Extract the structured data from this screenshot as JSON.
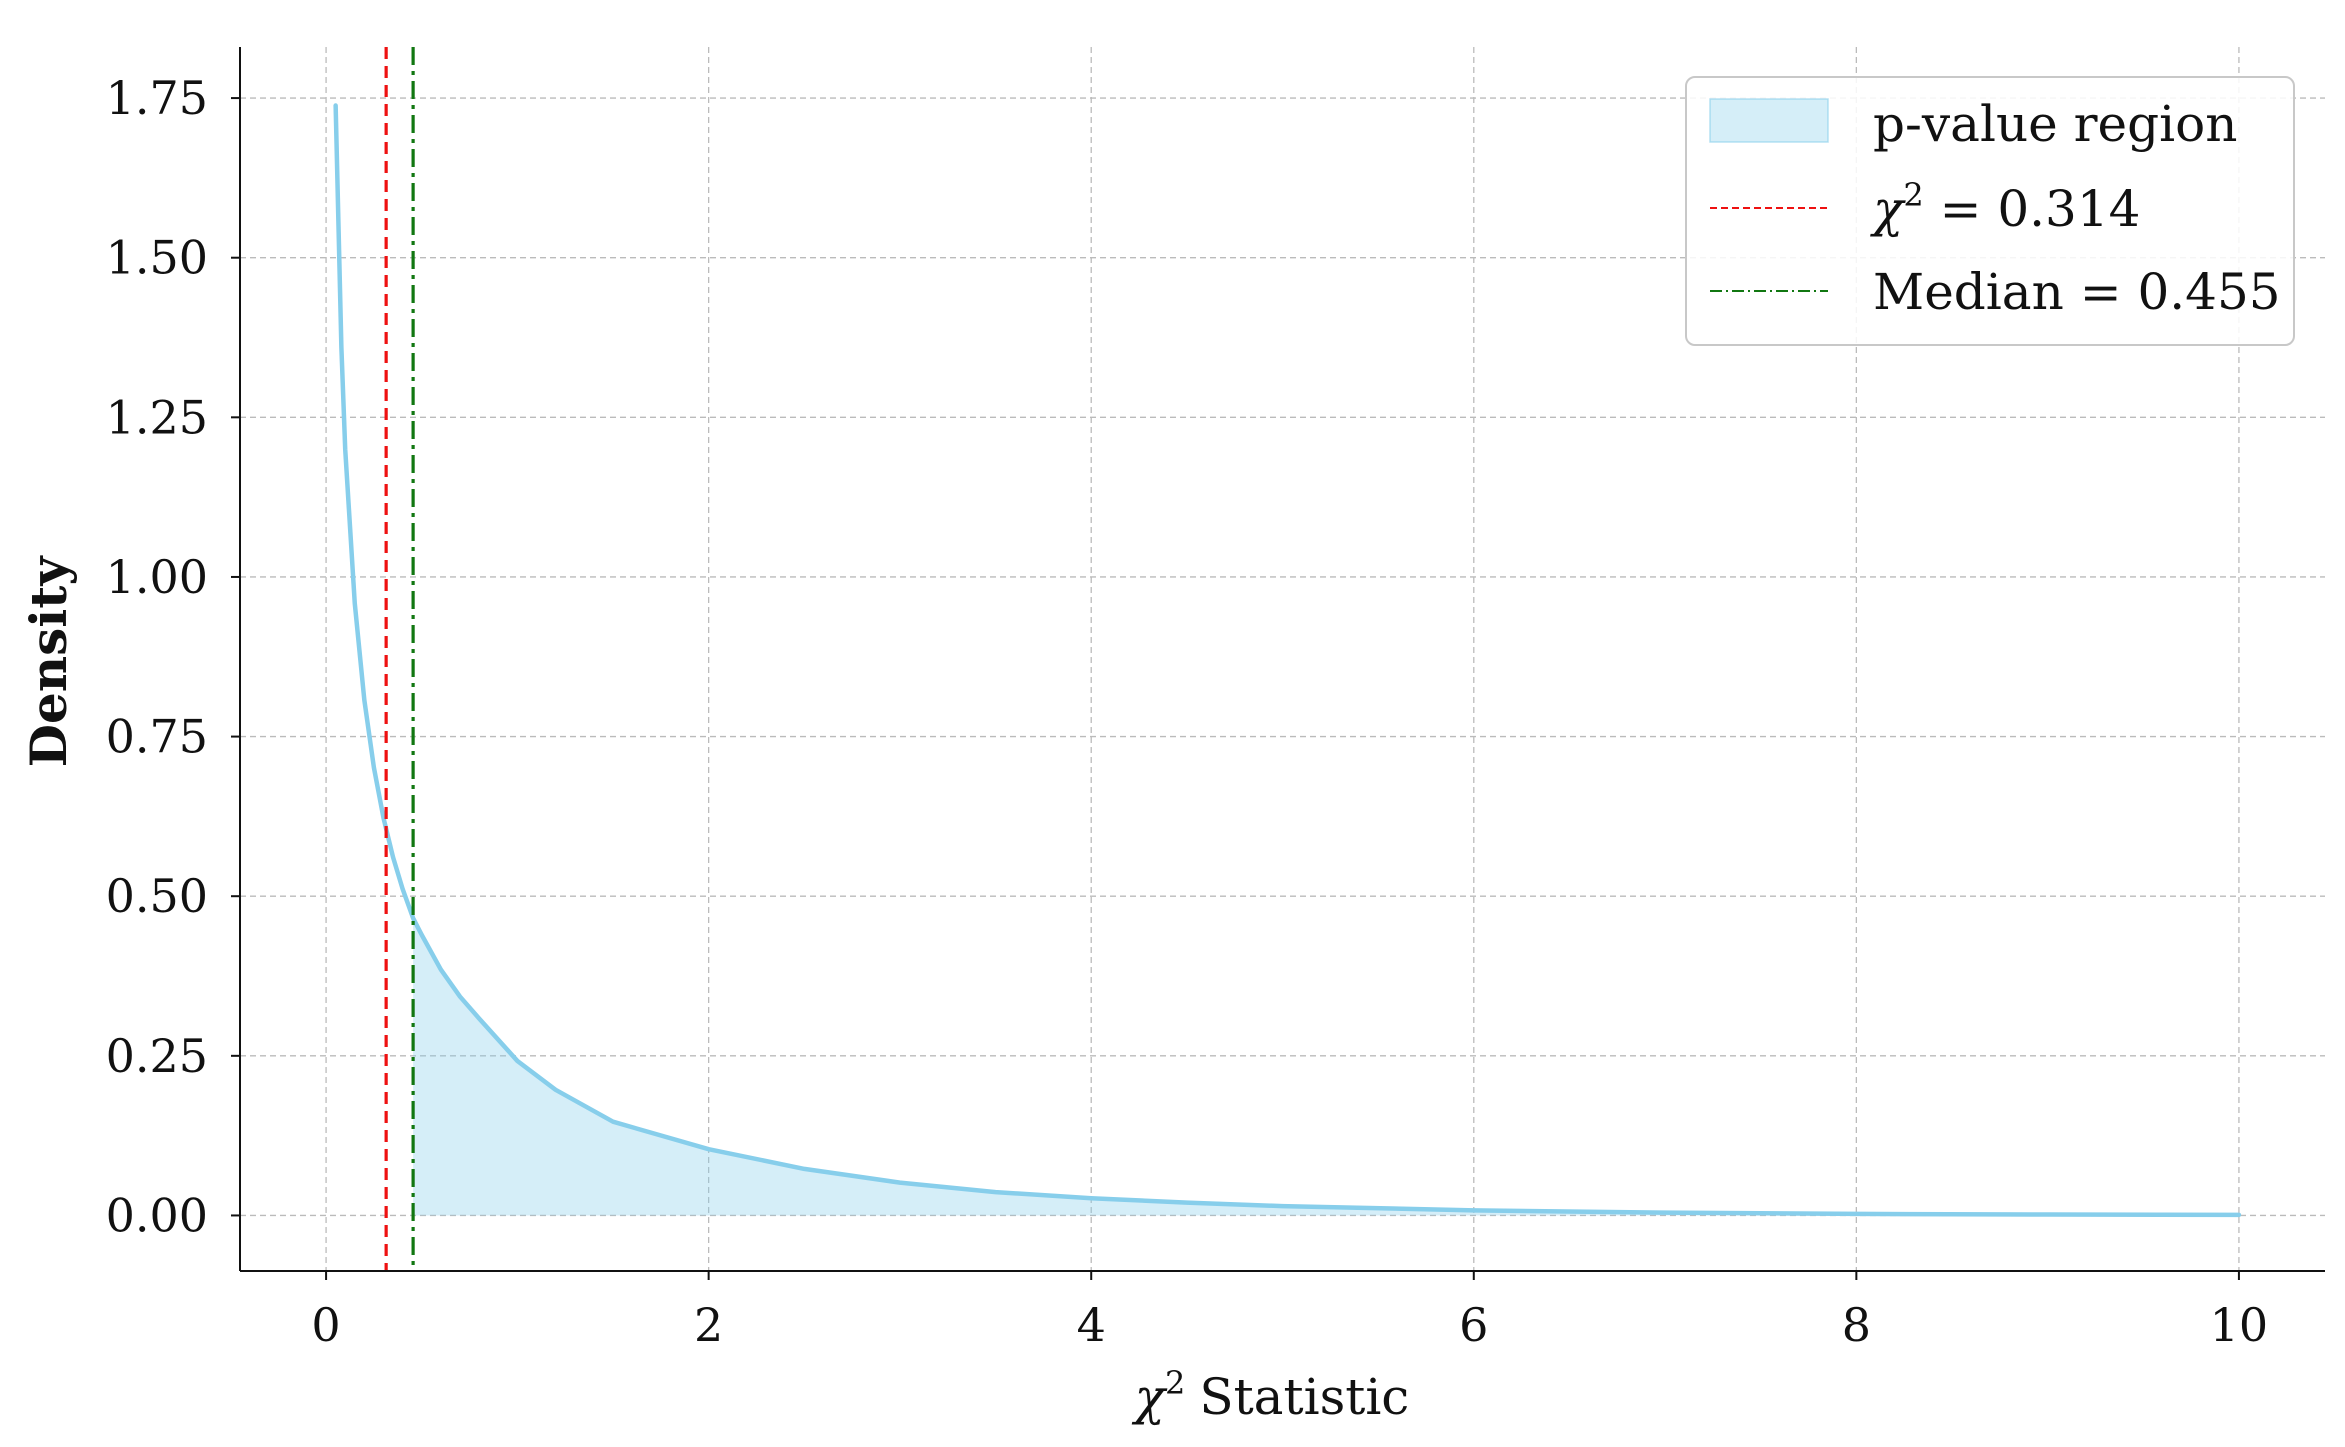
{
  "chart_data": {
    "type": "line",
    "title": "",
    "xlabel": "Statistic",
    "xlabel_symbol": "χ",
    "xlabel_superscript": "2",
    "ylabel": "Density",
    "xlim": [
      -0.45,
      10.45
    ],
    "ylim": [
      -0.087,
      1.83
    ],
    "x_ticks": [
      0,
      2,
      4,
      6,
      8,
      10
    ],
    "x_tick_labels": [
      "0",
      "2",
      "4",
      "6",
      "8",
      "10"
    ],
    "y_ticks": [
      0.0,
      0.25,
      0.5,
      0.75,
      1.0,
      1.25,
      1.5,
      1.75
    ],
    "y_tick_labels": [
      "0.00",
      "0.25",
      "0.50",
      "0.75",
      "1.00",
      "1.25",
      "1.50",
      "1.75"
    ],
    "grid": true,
    "legend_position": "top-right",
    "series": [
      {
        "kind": "curve",
        "color": "#87ceeb",
        "x": [
          0.05,
          0.08,
          0.1,
          0.15,
          0.2,
          0.25,
          0.3,
          0.35,
          0.4,
          0.455,
          0.5,
          0.6,
          0.7,
          0.8,
          1.0,
          1.2,
          1.5,
          2.0,
          2.5,
          3.0,
          3.5,
          4.0,
          4.5,
          5.0,
          6.0,
          7.0,
          8.0,
          9.0,
          10.0
        ],
        "y": [
          1.7383,
          1.3597,
          1.2,
          0.9586,
          0.8072,
          0.7015,
          0.6227,
          0.5612,
          0.5115,
          0.4656,
          0.4394,
          0.3851,
          0.3428,
          0.3085,
          0.242,
          0.1968,
          0.1468,
          0.1038,
          0.0729,
          0.0514,
          0.0366,
          0.027,
          0.02,
          0.0146,
          0.008,
          0.0044,
          0.0024,
          0.0015,
          0.0009
        ]
      },
      {
        "kind": "fill",
        "name": "p-value region",
        "color": "#87ceeb",
        "opacity": 0.35,
        "from_x": 0.455,
        "to_x": 10.0
      },
      {
        "kind": "vline",
        "name_symbol": "χ",
        "name_superscript": "2",
        "name_rest": " = 0.314",
        "x": 0.314,
        "color": "#ee1111",
        "style": "dashed"
      },
      {
        "kind": "vline",
        "name": "Median = 0.455",
        "x": 0.455,
        "color": "#117711",
        "style": "dash-dot"
      }
    ],
    "colors": {
      "curve": "#87ceeb",
      "fill": "#87ceeb",
      "chi_line": "#ee1111",
      "median_line": "#117711",
      "grid": "#bbbbbb",
      "axis": "#111111"
    }
  }
}
